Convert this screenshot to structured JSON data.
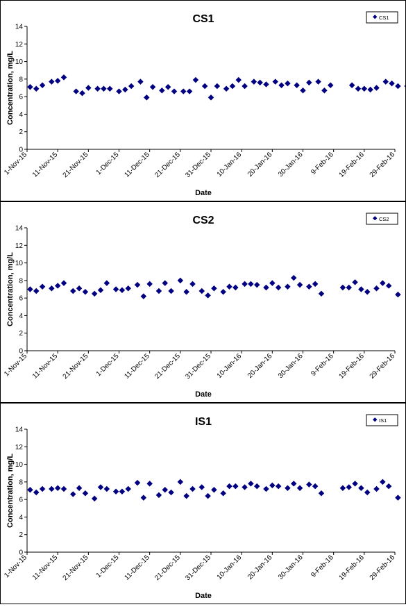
{
  "chart_data": [
    {
      "type": "scatter",
      "title": "CS1",
      "xlabel": "Date",
      "ylabel": "Concentration, mg/L",
      "ylim": [
        0,
        14
      ],
      "y_ticks": [
        "0",
        "2",
        "4",
        "6",
        "8",
        "10",
        "12",
        "14"
      ],
      "xlim": [
        "2015-11-01",
        "2016-02-29"
      ],
      "x_ticks": [
        "1-Nov-15",
        "11-Nov-15",
        "21-Nov-15",
        "1-Dec-15",
        "11-Dec-15",
        "21-Dec-15",
        "31-Dec-15",
        "10-Jan-16",
        "20-Jan-16",
        "30-Jan-16",
        "9-Feb-16",
        "19-Feb-16",
        "29-Feb-16"
      ],
      "grid": false,
      "legend": "top-right",
      "marker_color": "#000080",
      "series": [
        {
          "name": "CS1",
          "x": [
            "2015-11-02",
            "2015-11-04",
            "2015-11-06",
            "2015-11-09",
            "2015-11-11",
            "2015-11-13",
            "2015-11-17",
            "2015-11-19",
            "2015-11-21",
            "2015-11-24",
            "2015-11-26",
            "2015-11-28",
            "2015-12-01",
            "2015-12-03",
            "2015-12-05",
            "2015-12-08",
            "2015-12-10",
            "2015-12-12",
            "2015-12-15",
            "2015-12-17",
            "2015-12-19",
            "2015-12-22",
            "2015-12-24",
            "2015-12-26",
            "2015-12-29",
            "2015-12-31",
            "2016-01-02",
            "2016-01-05",
            "2016-01-07",
            "2016-01-09",
            "2016-01-11",
            "2016-01-14",
            "2016-01-16",
            "2016-01-18",
            "2016-01-21",
            "2016-01-23",
            "2016-01-25",
            "2016-01-28",
            "2016-01-30",
            "2016-02-01",
            "2016-02-04",
            "2016-02-06",
            "2016-02-08",
            "2016-02-15",
            "2016-02-17",
            "2016-02-19",
            "2016-02-21",
            "2016-02-23",
            "2016-02-26",
            "2016-02-28",
            "2016-03-01",
            "2016-03-04"
          ],
          "y": [
            7.1,
            6.9,
            7.3,
            7.7,
            7.8,
            8.2,
            6.6,
            6.4,
            7.0,
            6.9,
            6.9,
            6.9,
            6.6,
            6.8,
            7.2,
            7.7,
            5.9,
            7.1,
            6.7,
            7.1,
            6.6,
            6.6,
            6.6,
            7.9,
            7.2,
            5.9,
            7.2,
            6.9,
            7.2,
            7.9,
            7.2,
            7.7,
            7.6,
            7.4,
            7.7,
            7.3,
            7.5,
            7.3,
            6.7,
            7.6,
            7.7,
            6.7,
            7.3,
            7.3,
            6.9,
            6.9,
            6.8,
            7.0,
            7.7,
            7.5,
            7.2,
            7.2
          ]
        }
      ]
    },
    {
      "type": "scatter",
      "title": "CS2",
      "xlabel": "Date",
      "ylabel": "Concentration, mg/L",
      "ylim": [
        0,
        14
      ],
      "y_ticks": [
        "0",
        "2",
        "4",
        "6",
        "8",
        "10",
        "12",
        "14"
      ],
      "xlim": [
        "2015-11-01",
        "2016-02-29"
      ],
      "x_ticks": [
        "1-Nov-15",
        "11-Nov-15",
        "21-Nov-15",
        "1-Dec-15",
        "11-Dec-15",
        "21-Dec-15",
        "31-Dec-15",
        "10-Jan-16",
        "20-Jan-16",
        "30-Jan-16",
        "9-Feb-16",
        "19-Feb-16",
        "29-Feb-16"
      ],
      "grid": false,
      "legend": "top-right",
      "marker_color": "#000080",
      "series": [
        {
          "name": "CS2",
          "x": [
            "2015-11-02",
            "2015-11-04",
            "2015-11-06",
            "2015-11-09",
            "2015-11-11",
            "2015-11-13",
            "2015-11-16",
            "2015-11-18",
            "2015-11-20",
            "2015-11-23",
            "2015-11-25",
            "2015-11-27",
            "2015-11-30",
            "2015-12-02",
            "2015-12-04",
            "2015-12-07",
            "2015-12-09",
            "2015-12-11",
            "2015-12-14",
            "2015-12-16",
            "2015-12-18",
            "2015-12-21",
            "2015-12-23",
            "2015-12-25",
            "2015-12-28",
            "2015-12-30",
            "2016-01-01",
            "2016-01-04",
            "2016-01-06",
            "2016-01-08",
            "2016-01-11",
            "2016-01-13",
            "2016-01-15",
            "2016-01-18",
            "2016-01-20",
            "2016-01-22",
            "2016-01-25",
            "2016-01-27",
            "2016-01-29",
            "2016-02-01",
            "2016-02-03",
            "2016-02-05",
            "2016-02-12",
            "2016-02-14",
            "2016-02-16",
            "2016-02-18",
            "2016-02-20",
            "2016-02-23",
            "2016-02-25",
            "2016-02-27",
            "2016-03-01"
          ],
          "y": [
            7.0,
            6.8,
            7.3,
            7.1,
            7.4,
            7.7,
            6.8,
            7.1,
            6.7,
            6.5,
            6.9,
            7.7,
            7.0,
            6.9,
            7.1,
            7.5,
            6.2,
            7.6,
            6.8,
            7.7,
            6.8,
            8.0,
            6.7,
            7.6,
            6.8,
            6.3,
            7.1,
            6.7,
            7.3,
            7.2,
            7.6,
            7.6,
            7.5,
            7.2,
            7.7,
            7.2,
            7.3,
            8.3,
            7.5,
            7.3,
            7.6,
            6.5,
            7.2,
            7.2,
            7.8,
            7.0,
            6.7,
            7.1,
            7.7,
            7.4,
            6.4
          ]
        }
      ]
    },
    {
      "type": "scatter",
      "title": "IS1",
      "xlabel": "Date",
      "ylabel": "Concentration, mg/L",
      "ylim": [
        0,
        14
      ],
      "y_ticks": [
        "0",
        "2",
        "4",
        "6",
        "8",
        "10",
        "12",
        "14"
      ],
      "xlim": [
        "2015-11-01",
        "2016-02-29"
      ],
      "x_ticks": [
        "1-Nov-15",
        "11-Nov-15",
        "21-Nov-15",
        "1-Dec-15",
        "11-Dec-15",
        "21-Dec-15",
        "31-Dec-15",
        "10-Jan-16",
        "20-Jan-16",
        "30-Jan-16",
        "9-Feb-16",
        "19-Feb-16",
        "29-Feb-16"
      ],
      "grid": false,
      "legend": "top-right",
      "marker_color": "#000080",
      "series": [
        {
          "name": "IS1",
          "x": [
            "2015-11-02",
            "2015-11-04",
            "2015-11-06",
            "2015-11-09",
            "2015-11-11",
            "2015-11-13",
            "2015-11-16",
            "2015-11-18",
            "2015-11-20",
            "2015-11-23",
            "2015-11-25",
            "2015-11-27",
            "2015-11-30",
            "2015-12-02",
            "2015-12-04",
            "2015-12-07",
            "2015-12-09",
            "2015-12-11",
            "2015-12-14",
            "2015-12-16",
            "2015-12-18",
            "2015-12-21",
            "2015-12-23",
            "2015-12-25",
            "2015-12-28",
            "2015-12-30",
            "2016-01-01",
            "2016-01-04",
            "2016-01-06",
            "2016-01-08",
            "2016-01-11",
            "2016-01-13",
            "2016-01-15",
            "2016-01-18",
            "2016-01-20",
            "2016-01-22",
            "2016-01-25",
            "2016-01-27",
            "2016-01-29",
            "2016-02-01",
            "2016-02-03",
            "2016-02-05",
            "2016-02-12",
            "2016-02-14",
            "2016-02-16",
            "2016-02-18",
            "2016-02-20",
            "2016-02-23",
            "2016-02-25",
            "2016-02-27",
            "2016-03-01"
          ],
          "y": [
            7.1,
            6.8,
            7.2,
            7.2,
            7.3,
            7.2,
            6.6,
            7.3,
            6.7,
            6.1,
            7.4,
            7.2,
            6.9,
            6.9,
            7.2,
            7.9,
            6.2,
            7.8,
            6.5,
            7.1,
            6.8,
            8.0,
            6.4,
            7.2,
            7.4,
            6.4,
            7.1,
            6.7,
            7.5,
            7.5,
            7.4,
            7.8,
            7.5,
            7.2,
            7.6,
            7.5,
            7.3,
            7.8,
            7.3,
            7.7,
            7.5,
            6.7,
            7.3,
            7.4,
            7.8,
            7.3,
            6.8,
            7.2,
            8.0,
            7.5,
            6.2
          ]
        }
      ]
    }
  ]
}
